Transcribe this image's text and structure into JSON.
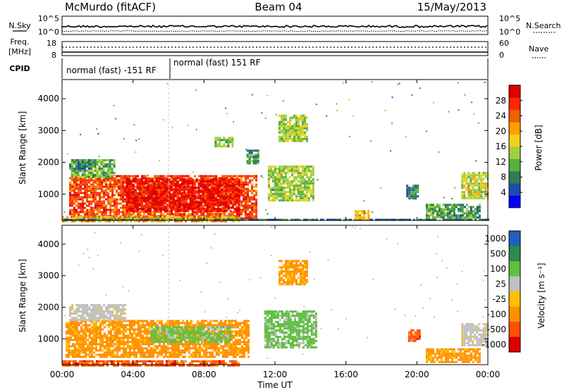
{
  "header": {
    "station": "McMurdo (fitACF)",
    "beam": "Beam 04",
    "date": "15/May/2013"
  },
  "top_panels": {
    "n_sky_label": "N.Sky",
    "n_sky_ticks": [
      "10^5",
      "10^0"
    ],
    "n_search_label": "N.Search",
    "n_search_ticks": [
      "10^5",
      "10^0"
    ],
    "freq_label_1": "Freq.",
    "freq_label_2": "[MHz]",
    "freq_ticks": [
      "18",
      "8"
    ],
    "nave_label": "Nave",
    "nave_ticks": [
      "60",
      "0"
    ],
    "cpid_label": "CPID",
    "cpid_segments": [
      {
        "label": "normal (fast) -151 RF",
        "start_hour": 0,
        "end_hour": 6
      },
      {
        "label": "normal (fast) 151 RF",
        "start_hour": 6,
        "end_hour": 24
      }
    ]
  },
  "x_axis": {
    "label": "Time UT",
    "range_hours": [
      0,
      24
    ],
    "tick_labels": [
      "00:00",
      "04:00",
      "08:00",
      "12:00",
      "16:00",
      "20:00",
      "00:00"
    ],
    "tick_hours": [
      0,
      4,
      8,
      12,
      16,
      20,
      24
    ]
  },
  "chart_data": [
    {
      "type": "heatmap",
      "name": "power",
      "ylabel": "Slant Range [km]",
      "ylim": [
        180,
        4600
      ],
      "yticks": [
        "1000",
        "2000",
        "3000",
        "4000"
      ],
      "ytick_values": [
        1000,
        2000,
        3000,
        4000
      ],
      "colorbar_label": "Power [dB]",
      "colorbar_ticks": [
        "4",
        "8",
        "12",
        "16",
        "20",
        "24",
        "28"
      ],
      "colorbar_tick_values": [
        4,
        8,
        12,
        16,
        20,
        24,
        28
      ],
      "colorbar_range": [
        0,
        32
      ],
      "colorbar_colors": [
        "#0000ff",
        "#1e4bb4",
        "#2c7d52",
        "#59b040",
        "#a0d040",
        "#f0d020",
        "#ffa000",
        "#f06000",
        "#ff2800",
        "#e00000"
      ],
      "regions": [
        {
          "t": [
            0.4,
            11
          ],
          "r": [
            220,
            1600
          ],
          "v": 26
        },
        {
          "t": [
            3.6,
            10
          ],
          "r": [
            500,
            1500
          ],
          "v": 30
        },
        {
          "t": [
            0.5,
            3
          ],
          "r": [
            1550,
            2100
          ],
          "v": 12
        },
        {
          "t": [
            0.4,
            1.6
          ],
          "r": [
            1800,
            2100
          ],
          "v": 8
        },
        {
          "t": [
            0,
            10
          ],
          "r": [
            180,
            320
          ],
          "v": 20
        },
        {
          "t": [
            0,
            24
          ],
          "r": [
            180,
            230
          ],
          "v": 8
        },
        {
          "t": [
            11.6,
            14.2
          ],
          "r": [
            800,
            1900
          ],
          "v": 14
        },
        {
          "t": [
            12.2,
            13.8
          ],
          "r": [
            2700,
            3500
          ],
          "v": 14
        },
        {
          "t": [
            8.6,
            9.6
          ],
          "r": [
            2500,
            2800
          ],
          "v": 12
        },
        {
          "t": [
            10.4,
            11
          ],
          "r": [
            2000,
            2400
          ],
          "v": 10
        },
        {
          "t": [
            16.5,
            17.4
          ],
          "r": [
            200,
            500
          ],
          "v": 20
        },
        {
          "t": [
            19.4,
            20
          ],
          "r": [
            900,
            1300
          ],
          "v": 8
        },
        {
          "t": [
            20.5,
            23.5
          ],
          "r": [
            250,
            700
          ],
          "v": 10
        },
        {
          "t": [
            22.5,
            24
          ],
          "r": [
            900,
            1700
          ],
          "v": 16
        }
      ]
    },
    {
      "type": "heatmap",
      "name": "velocity",
      "ylabel": "Slant Range [km]",
      "ylim": [
        180,
        4600
      ],
      "yticks": [
        "1000",
        "2000",
        "3000",
        "4000"
      ],
      "ytick_values": [
        1000,
        2000,
        3000,
        4000
      ],
      "colorbar_label": "Velocity [m s⁻¹]",
      "colorbar_ticks": [
        "1000",
        "500",
        "100",
        "25",
        "-25",
        "-100",
        "-500",
        "-1000"
      ],
      "colorbar_colors": [
        "#2060c0",
        "#2c8c4c",
        "#60c040",
        "#c0c0c0",
        "#ffc000",
        "#ff9000",
        "#ff5000",
        "#e00000"
      ],
      "regions": [
        {
          "t": [
            0.2,
            10.5
          ],
          "r": [
            400,
            1600
          ],
          "v": -100
        },
        {
          "t": [
            5,
            9.5
          ],
          "r": [
            900,
            1400
          ],
          "v": 100
        },
        {
          "t": [
            0.4,
            3.5
          ],
          "r": [
            1600,
            2100
          ],
          "v": 25
        },
        {
          "t": [
            0,
            10
          ],
          "r": [
            180,
            320
          ],
          "v": -500
        },
        {
          "t": [
            11.4,
            14.3
          ],
          "r": [
            700,
            1900
          ],
          "v": 100
        },
        {
          "t": [
            12.2,
            13.8
          ],
          "r": [
            2700,
            3500
          ],
          "v": -100
        },
        {
          "t": [
            19.5,
            20.1
          ],
          "r": [
            900,
            1300
          ],
          "v": -500
        },
        {
          "t": [
            20.5,
            23.5
          ],
          "r": [
            250,
            700
          ],
          "v": -100
        },
        {
          "t": [
            22.5,
            24
          ],
          "r": [
            800,
            1500
          ],
          "v": 25
        }
      ]
    }
  ]
}
